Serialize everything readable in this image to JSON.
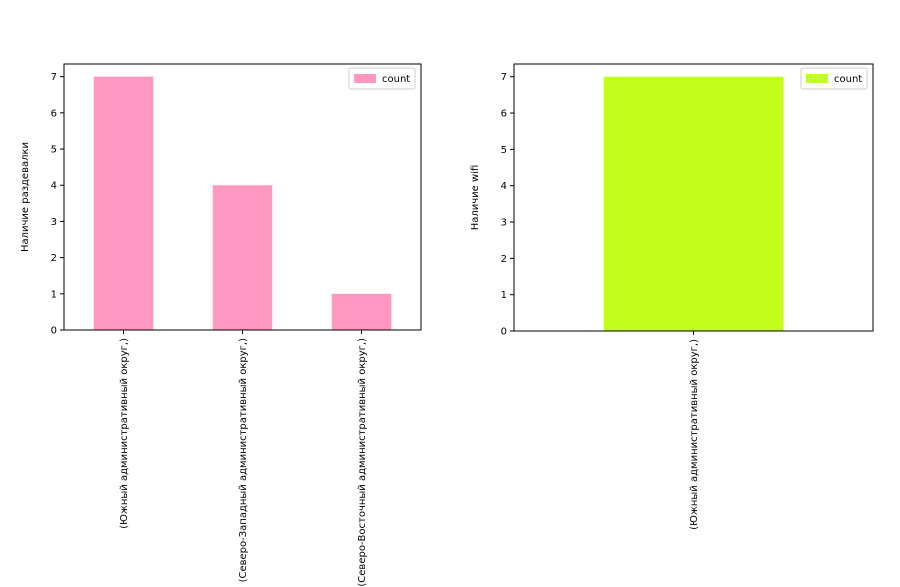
{
  "chart_data": [
    {
      "type": "bar",
      "y_label": "Наличие раздевалки",
      "categories": [
        "(Южный административный округ,)",
        "(Северо-Западный административный округ,)",
        "(Северо-Восточный административный округ,)"
      ],
      "series": [
        {
          "name": "count",
          "color": "#ff98c0",
          "values": [
            7,
            4,
            1
          ]
        }
      ],
      "ylim": [
        0,
        7.35
      ],
      "yticks": [
        0,
        1,
        2,
        3,
        4,
        5,
        6,
        7
      ],
      "legend": "upper right"
    },
    {
      "type": "bar",
      "y_label": "Наличие wifi",
      "categories": [
        "(Южный административный округ,)"
      ],
      "series": [
        {
          "name": "count",
          "color": "#c3ff1c",
          "values": [
            7
          ]
        }
      ],
      "ylim": [
        0,
        7.35
      ],
      "yticks": [
        0,
        1,
        2,
        3,
        4,
        5,
        6,
        7
      ],
      "legend": "upper right"
    }
  ]
}
